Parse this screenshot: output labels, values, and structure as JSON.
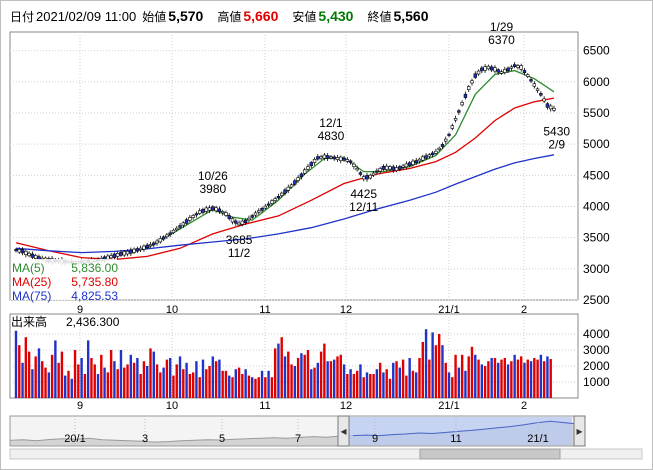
{
  "header": {
    "date_label": "日付",
    "datetime": "2021/02/09 11:00",
    "open_label": "始値",
    "open": "5,570",
    "high_label": "高値",
    "high": "5,660",
    "low_label": "安値",
    "low": "5,430",
    "close_label": "終値",
    "close": "5,560"
  },
  "chart_data": [
    {
      "type": "candlestick",
      "title": "",
      "ylim": [
        2500,
        6800
      ],
      "y_ticks": [
        "6500",
        "6000",
        "5500",
        "5000",
        "4500",
        "4000",
        "3500",
        "3000",
        "2500"
      ],
      "x_ticks": [
        "9",
        "10",
        "11",
        "12",
        "21/1",
        "2"
      ],
      "price_path": [
        [
          0,
          3300
        ],
        [
          2,
          3280
        ],
        [
          4,
          3230
        ],
        [
          6,
          3190
        ],
        [
          8,
          3160
        ],
        [
          10,
          3140
        ],
        [
          12,
          3130
        ],
        [
          14,
          3120
        ],
        [
          16,
          3110
        ],
        [
          18,
          3100
        ],
        [
          20,
          3110
        ],
        [
          22,
          3120
        ],
        [
          24,
          3130
        ],
        [
          26,
          3150
        ],
        [
          28,
          3180
        ],
        [
          30,
          3210
        ],
        [
          32,
          3240
        ],
        [
          34,
          3260
        ],
        [
          36,
          3290
        ],
        [
          38,
          3320
        ],
        [
          40,
          3360
        ],
        [
          42,
          3400
        ],
        [
          44,
          3460
        ],
        [
          46,
          3530
        ],
        [
          48,
          3600
        ],
        [
          50,
          3680
        ],
        [
          52,
          3760
        ],
        [
          54,
          3840
        ],
        [
          56,
          3910
        ],
        [
          58,
          3950
        ],
        [
          60,
          3970
        ],
        [
          62,
          3940
        ],
        [
          64,
          3880
        ],
        [
          66,
          3780
        ],
        [
          68,
          3720
        ],
        [
          70,
          3760
        ],
        [
          72,
          3840
        ],
        [
          74,
          3920
        ],
        [
          76,
          3990
        ],
        [
          78,
          4070
        ],
        [
          80,
          4150
        ],
        [
          82,
          4240
        ],
        [
          84,
          4330
        ],
        [
          86,
          4440
        ],
        [
          88,
          4560
        ],
        [
          90,
          4680
        ],
        [
          92,
          4780
        ],
        [
          94,
          4800
        ],
        [
          96,
          4790
        ],
        [
          98,
          4770
        ],
        [
          100,
          4760
        ],
        [
          102,
          4720
        ],
        [
          104,
          4600
        ],
        [
          106,
          4460
        ],
        [
          108,
          4480
        ],
        [
          110,
          4560
        ],
        [
          112,
          4620
        ],
        [
          114,
          4620
        ],
        [
          116,
          4600
        ],
        [
          118,
          4640
        ],
        [
          120,
          4680
        ],
        [
          122,
          4720
        ],
        [
          124,
          4770
        ],
        [
          126,
          4820
        ],
        [
          128,
          4870
        ],
        [
          130,
          4980
        ],
        [
          132,
          5150
        ],
        [
          134,
          5400
        ],
        [
          136,
          5650
        ],
        [
          138,
          5900
        ],
        [
          140,
          6100
        ],
        [
          142,
          6200
        ],
        [
          144,
          6230
        ],
        [
          146,
          6200
        ],
        [
          148,
          6150
        ],
        [
          150,
          6200
        ],
        [
          152,
          6260
        ],
        [
          154,
          6230
        ],
        [
          156,
          6100
        ],
        [
          158,
          5950
        ],
        [
          160,
          5800
        ],
        [
          162,
          5620
        ],
        [
          164,
          5560
        ]
      ],
      "ma_series": [
        {
          "name": "MA(5)",
          "value": "5,836.00",
          "color": "#2e8b2e",
          "path": [
            [
              0,
              3330
            ],
            [
              10,
              3120
            ],
            [
              20,
              3110
            ],
            [
              30,
              3200
            ],
            [
              40,
              3330
            ],
            [
              50,
              3640
            ],
            [
              60,
              3950
            ],
            [
              66,
              3830
            ],
            [
              72,
              3780
            ],
            [
              80,
              4100
            ],
            [
              88,
              4520
            ],
            [
              94,
              4770
            ],
            [
              100,
              4780
            ],
            [
              106,
              4560
            ],
            [
              112,
              4560
            ],
            [
              120,
              4640
            ],
            [
              128,
              4820
            ],
            [
              134,
              5150
            ],
            [
              140,
              5800
            ],
            [
              146,
              6120
            ],
            [
              152,
              6180
            ],
            [
              158,
              6050
            ],
            [
              164,
              5840
            ]
          ]
        },
        {
          "name": "MA(25)",
          "value": "5,735.80",
          "color": "#e00000",
          "path": [
            [
              0,
              3420
            ],
            [
              10,
              3290
            ],
            [
              20,
              3180
            ],
            [
              30,
              3150
            ],
            [
              40,
              3200
            ],
            [
              50,
              3330
            ],
            [
              60,
              3560
            ],
            [
              70,
              3720
            ],
            [
              80,
              3850
            ],
            [
              90,
              4100
            ],
            [
              100,
              4370
            ],
            [
              110,
              4520
            ],
            [
              120,
              4610
            ],
            [
              128,
              4720
            ],
            [
              134,
              4870
            ],
            [
              140,
              5100
            ],
            [
              146,
              5380
            ],
            [
              152,
              5580
            ],
            [
              158,
              5680
            ],
            [
              164,
              5740
            ]
          ]
        },
        {
          "name": "MA(75)",
          "value": "4,825.53",
          "color": "#1f33c8",
          "path": [
            [
              0,
              3330
            ],
            [
              10,
              3290
            ],
            [
              20,
              3260
            ],
            [
              30,
              3280
            ],
            [
              40,
              3320
            ],
            [
              50,
              3380
            ],
            [
              60,
              3430
            ],
            [
              70,
              3480
            ],
            [
              80,
              3560
            ],
            [
              90,
              3660
            ],
            [
              100,
              3800
            ],
            [
              110,
              3960
            ],
            [
              120,
              4100
            ],
            [
              128,
              4230
            ],
            [
              134,
              4360
            ],
            [
              140,
              4480
            ],
            [
              146,
              4600
            ],
            [
              152,
              4700
            ],
            [
              158,
              4770
            ],
            [
              164,
              4830
            ]
          ]
        }
      ],
      "annotations": [
        {
          "text": "1/29",
          "idx": 148,
          "y": 6370,
          "pos": "above"
        },
        {
          "text": "6370",
          "idx": 148,
          "y": 6370,
          "pos": "above2"
        },
        {
          "text": "12/1",
          "idx": 96,
          "y": 4830,
          "pos": "above"
        },
        {
          "text": "4830",
          "idx": 96,
          "y": 4830,
          "pos": "above2"
        },
        {
          "text": "10/26",
          "idx": 60,
          "y": 3980,
          "pos": "above"
        },
        {
          "text": "3980",
          "idx": 60,
          "y": 3980,
          "pos": "above2"
        },
        {
          "text": "3685",
          "idx": 68,
          "y": 3685,
          "pos": "below"
        },
        {
          "text": "11/2",
          "idx": 68,
          "y": 3685,
          "pos": "below2"
        },
        {
          "text": "4425",
          "idx": 106,
          "y": 4425,
          "pos": "below"
        },
        {
          "text": "12/11",
          "idx": 106,
          "y": 4425,
          "pos": "below2"
        },
        {
          "text": "5430",
          "idx": 163,
          "y": 5430,
          "pos": "below"
        },
        {
          "text": "2/9",
          "idx": 163,
          "y": 5430,
          "pos": "below2"
        }
      ]
    },
    {
      "type": "bar",
      "title": "",
      "series_label": "出来高",
      "last_value": "2,436.300",
      "ylim": [
        0,
        5000
      ],
      "y_ticks": [
        "4000",
        "3000",
        "2000",
        "1000"
      ],
      "x_ticks": [
        "9",
        "10",
        "11",
        "12",
        "21/1",
        "2"
      ],
      "values": [
        4200,
        3300,
        2200,
        3800,
        2900,
        1800,
        2600,
        3100,
        2300,
        1900,
        1600,
        2700,
        3600,
        2200,
        2900,
        1400,
        1700,
        1200,
        3000,
        2100,
        2500,
        1500,
        3600,
        2500,
        2100,
        1500,
        2700,
        1900,
        1600,
        3000,
        2300,
        1800,
        3000,
        1900,
        2100,
        2700,
        2200,
        2500,
        1500,
        2300,
        2000,
        3100,
        2900,
        2100,
        1600,
        1900,
        2400,
        2500,
        1400,
        2100,
        2600,
        1800,
        2200,
        1500,
        1600,
        2300,
        1300,
        2400,
        1800,
        2000,
        2600,
        2300,
        2400,
        1700,
        1700,
        1400,
        1300,
        1800,
        1900,
        1500,
        1800,
        1400,
        1300,
        1200,
        1300,
        1700,
        1300,
        1700,
        1300,
        3100,
        3400,
        3800,
        2600,
        2900,
        2100,
        2000,
        2500,
        2800,
        2700,
        3000,
        1800,
        1900,
        2200,
        2900,
        3400,
        2300,
        2300,
        2400,
        2600,
        2700,
        2100,
        1500,
        1800,
        1500,
        1700,
        2100,
        1300,
        1600,
        1500,
        1500,
        1800,
        2200,
        1600,
        1800,
        1200,
        2200,
        2300,
        1900,
        2400,
        1400,
        2500,
        1700,
        1600,
        2500,
        3500,
        4300,
        2400,
        4100,
        3300,
        4000,
        3300,
        2200,
        1600,
        1300,
        2700,
        1900,
        2700,
        1700,
        2600,
        3200,
        2700,
        2400,
        2100,
        2000,
        2300,
        2500,
        2500,
        2200,
        2400,
        2500,
        2100,
        2300,
        2700,
        2400,
        2600,
        2200,
        2400,
        2300,
        2500,
        2400,
        2700,
        2300,
        2600,
        2436
      ]
    },
    {
      "type": "area",
      "title": "",
      "role": "navigator",
      "x_ticks": [
        "20/1",
        "3",
        "5",
        "7",
        "9",
        "11",
        "21/1"
      ],
      "values": [
        0.22,
        0.24,
        0.2,
        0.25,
        0.28,
        0.26,
        0.3,
        0.24,
        0.22,
        0.2,
        0.18,
        0.15,
        0.17,
        0.2,
        0.22,
        0.24,
        0.23,
        0.26,
        0.28,
        0.3,
        0.32,
        0.3,
        0.33,
        0.36,
        0.34,
        0.38,
        0.4,
        0.42,
        0.4,
        0.44,
        0.46,
        0.5,
        0.48,
        0.52,
        0.56,
        0.6,
        0.65,
        0.7,
        0.75,
        0.82,
        0.9,
        0.95,
        0.9,
        0.85
      ]
    }
  ]
}
